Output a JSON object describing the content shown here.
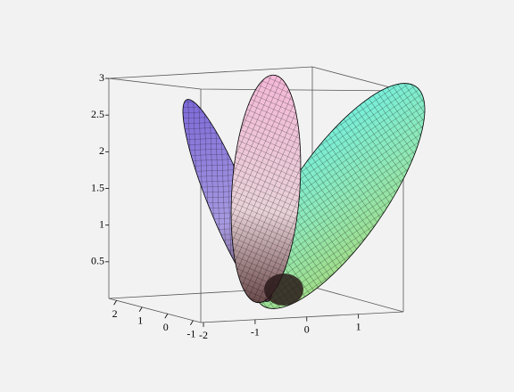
{
  "chart_data": {
    "type": "surface3d",
    "zlim": [
      0,
      3
    ],
    "zticks": [
      0.5,
      1,
      1.5,
      2,
      2.5,
      3
    ],
    "xlim": [
      -2,
      1.8
    ],
    "xticks": [
      -2,
      -1,
      0,
      1
    ],
    "ylim": [
      2.3,
      -1.3
    ],
    "yticks": [
      2,
      1,
      0,
      -1
    ],
    "box": true
  }
}
